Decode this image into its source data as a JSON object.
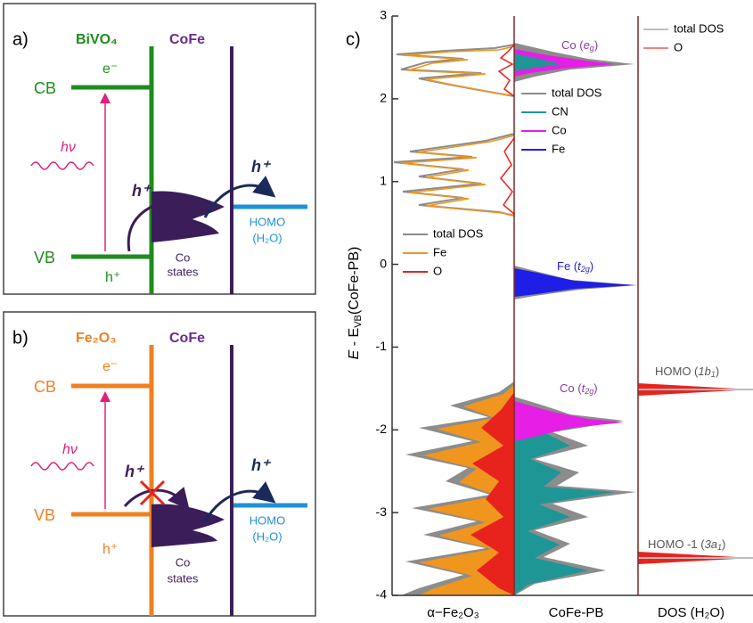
{
  "panel_a": {
    "label": "a)",
    "semiconductor": "BiVO₄",
    "cocatalyst": "CoFe",
    "cb": "CB",
    "vb": "VB",
    "electron": "e⁻",
    "hole": "h⁺",
    "light": "hν",
    "transfer_hole_1": "h⁺",
    "transfer_hole_2": "h⁺",
    "homo": "HOMO",
    "homo_species": "(H₂O)",
    "states_1": "Co",
    "states_2": "states"
  },
  "panel_b": {
    "label": "b)",
    "semiconductor": "Fe₂O₃",
    "cocatalyst": "CoFe",
    "cb": "CB",
    "vb": "VB",
    "electron": "e⁻",
    "hole": "h⁺",
    "light": "hν",
    "transfer_hole_1": "h⁺",
    "transfer_hole_2": "h⁺",
    "homo": "HOMO",
    "homo_species": "(H₂O)",
    "states_1": "Co",
    "states_2": "states"
  },
  "panel_c": {
    "label": "c)",
    "y_axis_label": {
      "e": "E",
      "minus": " - E",
      "sub": "VB",
      "rest": "(CoFe-PB)"
    },
    "ylim": [
      -4,
      3
    ],
    "yticks": [
      -4,
      -3,
      -2,
      -1,
      0,
      1,
      2,
      3
    ],
    "columns": [
      {
        "name": "α−Fe₂O₃",
        "legend": [
          {
            "name": "total DOS",
            "color": "#8c8c8c"
          },
          {
            "name": "Fe",
            "color": "#f0961e"
          },
          {
            "name": "O",
            "color": "#e8231e"
          }
        ]
      },
      {
        "name": "CoFe-PB",
        "legend": [
          {
            "name": "total DOS",
            "color": "#8c8c8c"
          },
          {
            "name": "CN",
            "color": "#1e9696"
          },
          {
            "name": "Co",
            "color": "#e61ee6"
          },
          {
            "name": "Fe",
            "color": "#1e1ee6"
          }
        ]
      },
      {
        "name": "DOS (H₂O)",
        "legend": [
          {
            "name": "total DOS",
            "color": "#bdbdbd"
          },
          {
            "name": "O",
            "color": "#f08080"
          }
        ]
      }
    ],
    "annotations": {
      "co_eg": {
        "a": "Co (",
        "b": "e",
        "c": "g",
        "d": ")"
      },
      "fe_t2g": {
        "a": "Fe (",
        "b": "t",
        "c": "2g",
        "d": ")"
      },
      "co_t2g": {
        "a": "Co (",
        "b": "t",
        "c": "2g",
        "d": ")"
      },
      "homo": {
        "a": "HOMO (",
        "b": "1b",
        "c": "1",
        "d": ")"
      },
      "homo_1": {
        "a": "HOMO -1 (",
        "b": "3a",
        "c": "1",
        "d": ")"
      }
    }
  }
}
